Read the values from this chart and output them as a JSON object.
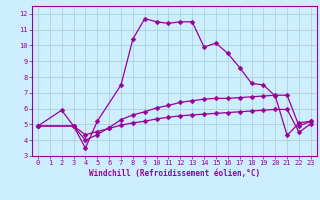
{
  "xlabel": "Windchill (Refroidissement éolien,°C)",
  "xlim": [
    -0.5,
    23.5
  ],
  "ylim": [
    3,
    12.5
  ],
  "xticks": [
    0,
    1,
    2,
    3,
    4,
    5,
    6,
    7,
    8,
    9,
    10,
    11,
    12,
    13,
    14,
    15,
    16,
    17,
    18,
    19,
    20,
    21,
    22,
    23
  ],
  "yticks": [
    3,
    4,
    5,
    6,
    7,
    8,
    9,
    10,
    11,
    12
  ],
  "background_color": "#cceeff",
  "grid_color": "#aacccc",
  "line_color": "#990099",
  "line1_x": [
    0,
    2,
    3,
    4,
    5,
    7,
    8,
    9,
    10,
    11,
    12,
    13,
    14,
    15,
    16,
    17,
    18,
    19,
    20,
    21,
    22,
    23
  ],
  "line1_y": [
    4.9,
    5.9,
    4.9,
    3.5,
    5.2,
    7.5,
    10.4,
    11.7,
    11.5,
    11.4,
    11.5,
    11.5,
    9.9,
    10.15,
    9.5,
    8.6,
    7.6,
    7.5,
    6.8,
    4.3,
    5.1,
    5.2
  ],
  "line2_x": [
    0,
    3,
    4,
    5,
    6,
    7,
    8,
    9,
    10,
    11,
    12,
    13,
    14,
    15,
    16,
    17,
    18,
    19,
    20,
    21,
    22,
    23
  ],
  "line2_y": [
    4.9,
    4.9,
    4.0,
    4.35,
    4.8,
    5.3,
    5.6,
    5.8,
    6.05,
    6.2,
    6.4,
    6.5,
    6.6,
    6.65,
    6.65,
    6.7,
    6.75,
    6.8,
    6.85,
    6.85,
    4.9,
    5.2
  ],
  "line3_x": [
    0,
    3,
    4,
    5,
    6,
    7,
    8,
    9,
    10,
    11,
    12,
    13,
    14,
    15,
    16,
    17,
    18,
    19,
    20,
    21,
    22,
    23
  ],
  "line3_y": [
    4.9,
    4.9,
    4.35,
    4.55,
    4.75,
    4.95,
    5.1,
    5.2,
    5.35,
    5.45,
    5.55,
    5.6,
    5.65,
    5.7,
    5.75,
    5.8,
    5.85,
    5.9,
    5.95,
    5.95,
    4.5,
    5.05
  ],
  "marker_size": 2.5,
  "line_width": 0.9,
  "tick_fontsize": 5.0,
  "xlabel_fontsize": 5.5
}
